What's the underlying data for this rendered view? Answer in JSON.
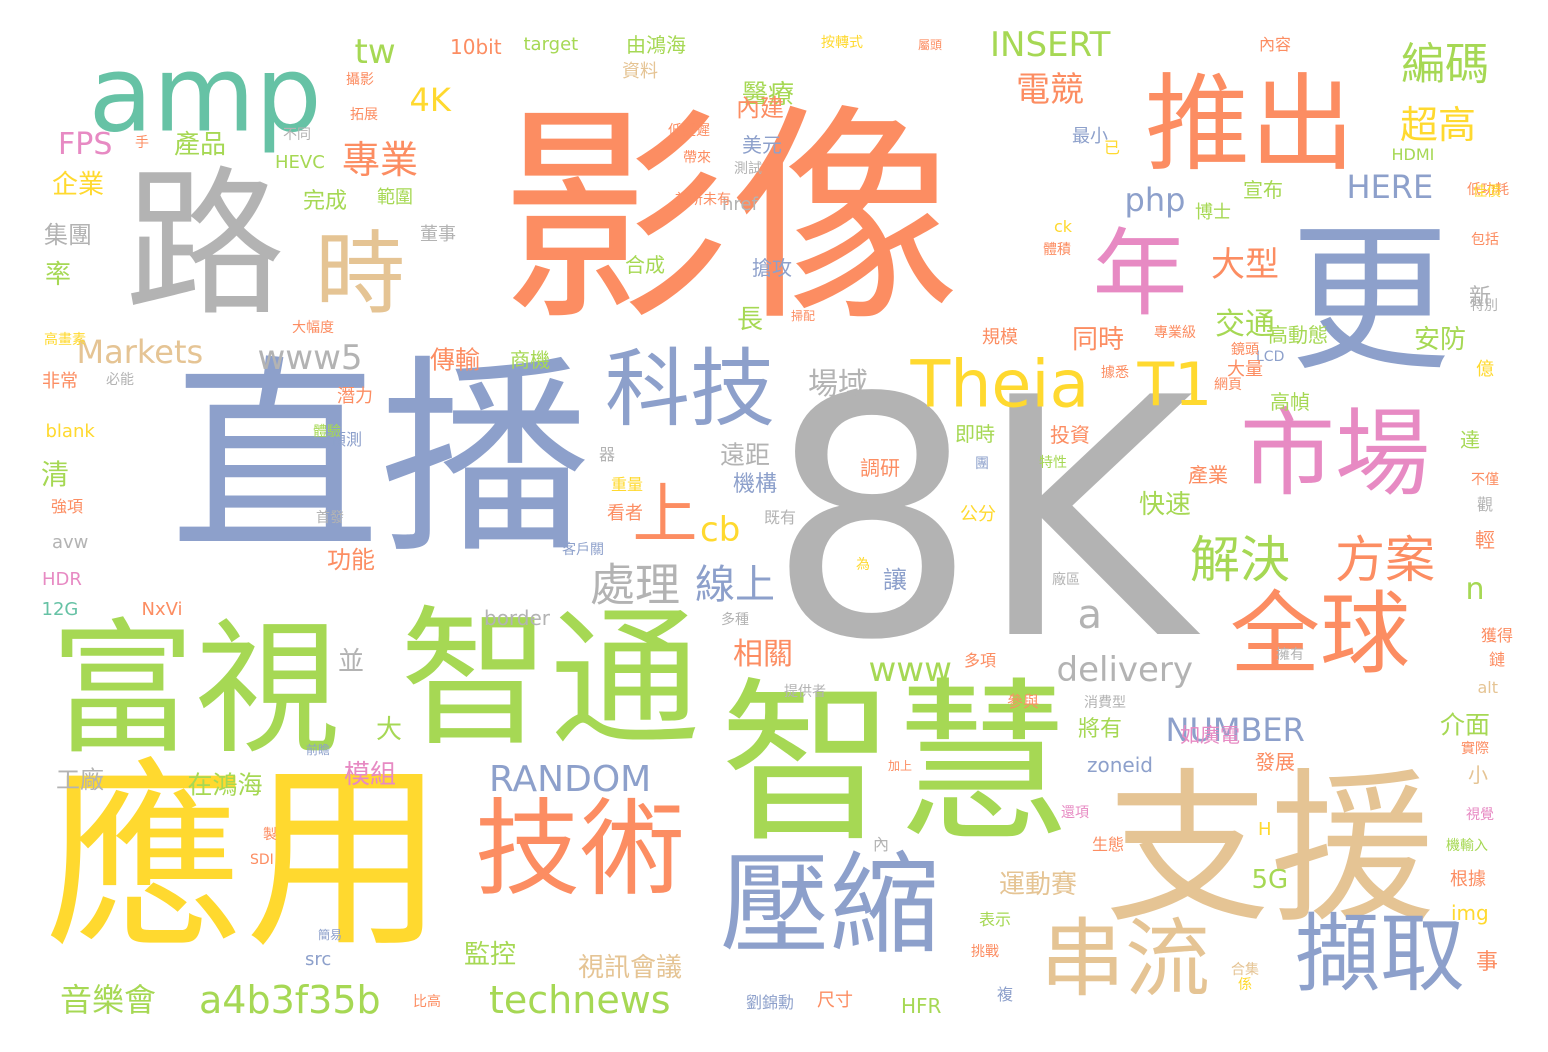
{
  "palette": {
    "orange": "#fc8d62",
    "green": "#a6d854",
    "blue": "#8da0cb",
    "gray": "#b3b3b3",
    "yellow": "#ffd92f",
    "tan": "#e5c494",
    "pink": "#e78ac3",
    "teal": "#66c2a5"
  },
  "words": [
    "8K",
    "影像",
    "直播",
    "應用",
    "智慧",
    "支援",
    "富視",
    "智通",
    "路",
    "更",
    "amp",
    "推出",
    "技術",
    "壓縮",
    "串流",
    "擷取",
    "年",
    "市場",
    "全球",
    "科技",
    "時",
    "Theia",
    "T1",
    "上",
    "解決",
    "方案",
    "處理",
    "線上",
    "cb",
    "RANDOM",
    "technews",
    "a4b3f35b",
    "音樂會",
    "delivery",
    "www",
    "NUMBER",
    "INSERT",
    "HERE",
    "編碼",
    "超高",
    "電競",
    "專業",
    "4K",
    "FPS",
    "Markets",
    "www5",
    "php",
    "大型",
    "交通",
    "場域",
    "tw",
    "企業",
    "產品",
    "集團",
    "醫療",
    "內建",
    "美元",
    "完成",
    "範圍",
    "由鴻海",
    "10bit",
    "target",
    "資料",
    "相關",
    "在鴻海",
    "模組",
    "大",
    "並",
    "功能",
    "遠距",
    "機構",
    "視訊會議",
    "監控",
    "運動賽",
    "5G",
    "快速",
    "產業",
    "介面",
    "zoneid",
    "將有",
    "如廣電",
    "發展",
    "小",
    "同時",
    "安防",
    "高動態",
    "高幀",
    "長",
    "傳輸",
    "商機",
    "搶攻",
    "合成",
    "新",
    "清",
    "率",
    "工廠",
    "HDR",
    "12G",
    "NxVi",
    "border",
    "a",
    "n",
    "avw",
    "blank",
    "HEVC",
    "SDI",
    "src",
    "HFR",
    "尺寸",
    "劉錦勳",
    "公分",
    "即時",
    "投資",
    "調研",
    "讓",
    "看者",
    "器",
    "重量",
    "既有",
    "首發",
    "強項",
    "預測",
    "潛力",
    "體驗",
    "非常",
    "必能",
    "高畫素",
    "大幅度",
    "董事",
    "宣布",
    "博士",
    "HDMI",
    "低功耗",
    "佳價",
    "包括",
    "特別",
    "億",
    "達",
    "不僅",
    "觀",
    "輕",
    "事",
    "img",
    "根據",
    "機輸入",
    "視覺",
    "實際",
    "alt",
    "獲得",
    "鏈",
    "擁有",
    "廠區",
    "為",
    "消費型",
    "參與",
    "多項",
    "提供者",
    "多種",
    "內",
    "加上",
    "前瞻",
    "製",
    "簡易",
    "比高",
    "還項",
    "生態",
    "表示",
    "挑戰",
    "合集",
    "係",
    "複",
    "H",
    "LCD",
    "網頁",
    "大量",
    "據悉",
    "規模",
    "專業級",
    "特性",
    "團",
    "最小",
    "已",
    "ck",
    "體積",
    "href",
    "測試",
    "帶來",
    "低延遲",
    "前所未有",
    "不同",
    "拓展",
    "攝影",
    "手",
    "內容",
    "按轉式",
    "屬頭",
    "掃配",
    "鏡頭",
    "客戶關",
    "一"
  ]
}
